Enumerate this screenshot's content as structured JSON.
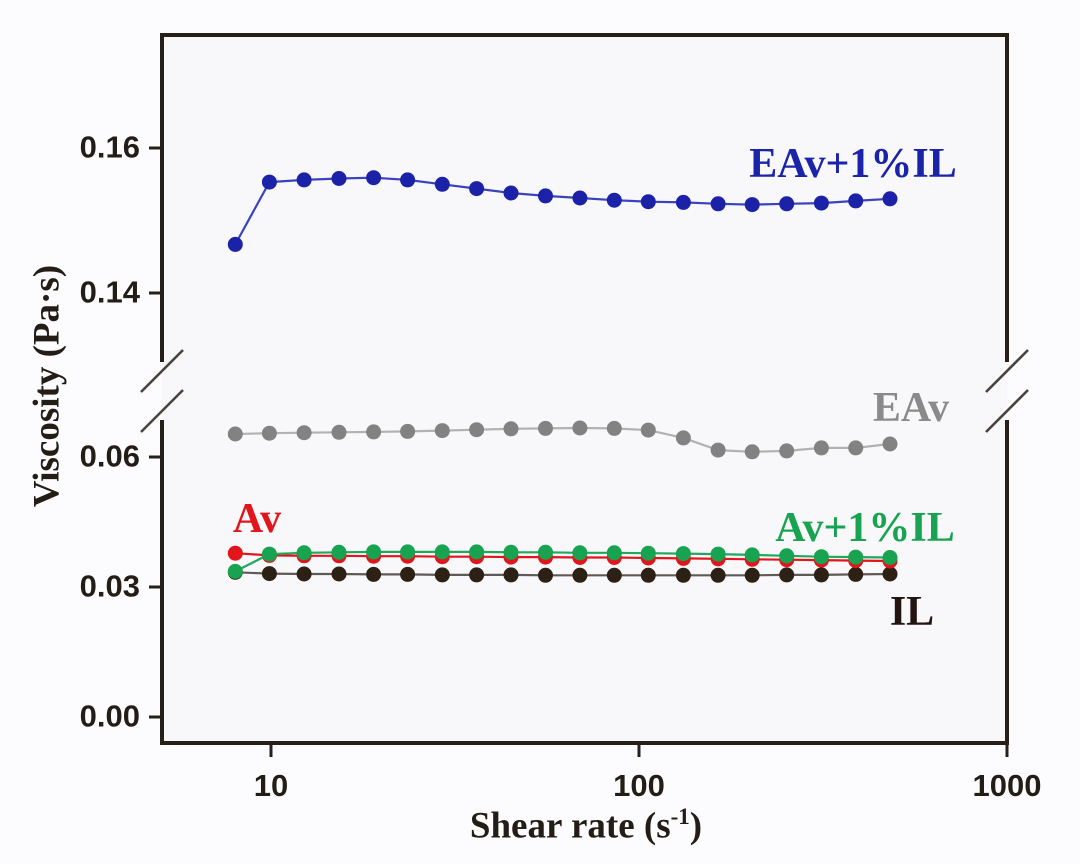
{
  "figure": {
    "background": "#fcfcfe",
    "plot_background": "#f8f8fb",
    "frame_color": "#262019",
    "text_color": "#241d16",
    "break_mark_color": "#4a443e"
  },
  "chart_data": {
    "type": "line",
    "title": "",
    "xlabel": "Shear rate (s⁻¹)",
    "xlabel_parts": {
      "prefix": "Shear rate (s",
      "sup": "-1",
      "suffix": ")"
    },
    "ylabel": "Viscosity (Pa·s)",
    "x_scale": "log",
    "xlim": [
      5,
      1000
    ],
    "x_tick_values": [
      10,
      100,
      1000
    ],
    "x_tick_labels": [
      "10",
      "100",
      "1000"
    ],
    "y_tick_values": [
      0.0,
      0.03,
      0.06,
      0.14,
      0.16
    ],
    "y_tick_labels": [
      "0.00",
      "0.03",
      "0.06",
      "0.14",
      "0.16"
    ],
    "y_axis_break": [
      0.07,
      0.13
    ],
    "ylim_lower_segment": [
      0.0,
      0.075
    ],
    "ylim_upper_segment": [
      0.13,
      0.176
    ],
    "grid": false,
    "legend_position": "inline-series-labels",
    "x": [
      8,
      9.9,
      12.3,
      15.3,
      19.0,
      23.5,
      29.2,
      36.2,
      44.9,
      55.7,
      69.1,
      85.7,
      106,
      132,
      164,
      203,
      252,
      313,
      388,
      481
    ],
    "series": [
      {
        "name": "EAv",
        "marker_color": "#828282",
        "line_color": "#b2b2b2",
        "label_color": "#8a8a8a",
        "values": [
          0.0653,
          0.0655,
          0.0656,
          0.0657,
          0.0658,
          0.0659,
          0.0661,
          0.0663,
          0.0665,
          0.0666,
          0.0667,
          0.0666,
          0.0662,
          0.0644,
          0.0616,
          0.0612,
          0.0614,
          0.0621,
          0.0621,
          0.063
        ]
      },
      {
        "name": "IL",
        "marker_color": "#2d2014",
        "line_color": "#5f5a56",
        "label_color": "#221510",
        "values": [
          0.0334,
          0.0331,
          0.033,
          0.033,
          0.0329,
          0.0329,
          0.0328,
          0.0328,
          0.0328,
          0.0327,
          0.0327,
          0.0327,
          0.0327,
          0.0327,
          0.0327,
          0.0327,
          0.0328,
          0.0328,
          0.0329,
          0.033
        ]
      },
      {
        "name": "Av",
        "marker_color": "#e1151b",
        "line_color": "#e1151b",
        "label_color": "#e1151b",
        "values": [
          0.0378,
          0.0373,
          0.0372,
          0.0372,
          0.0371,
          0.0371,
          0.037,
          0.037,
          0.0369,
          0.0369,
          0.0368,
          0.0368,
          0.0367,
          0.0366,
          0.0365,
          0.0364,
          0.0363,
          0.0362,
          0.0361,
          0.036
        ]
      },
      {
        "name": "Av+1%IL",
        "marker_color": "#17a34f",
        "line_color": "#21a85d",
        "label_color": "#17a34f",
        "values": [
          0.0336,
          0.0376,
          0.0379,
          0.038,
          0.0381,
          0.0381,
          0.0381,
          0.0381,
          0.038,
          0.038,
          0.0379,
          0.0379,
          0.0378,
          0.0377,
          0.0376,
          0.0374,
          0.0372,
          0.037,
          0.0369,
          0.0368
        ]
      },
      {
        "name": "EAv+1%IL",
        "marker_color": "#1b22a8",
        "line_color": "#3a42bd",
        "label_color": "#1b23a9",
        "values": [
          0.1467,
          0.1553,
          0.1556,
          0.1558,
          0.1559,
          0.1556,
          0.155,
          0.1544,
          0.1538,
          0.1534,
          0.1531,
          0.1528,
          0.1526,
          0.1525,
          0.1523,
          0.1522,
          0.1523,
          0.1524,
          0.1527,
          0.153
        ]
      }
    ]
  }
}
